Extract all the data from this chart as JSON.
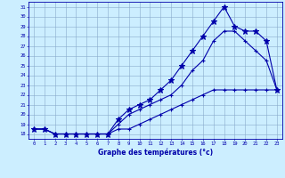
{
  "xlabel": "Graphe des températures (°c)",
  "bg_color": "#cceeff",
  "line_color": "#0000aa",
  "grid_color": "#88aacc",
  "xlim": [
    -0.5,
    23.5
  ],
  "ylim": [
    17.5,
    31.5
  ],
  "xticks": [
    0,
    1,
    2,
    3,
    4,
    5,
    6,
    7,
    8,
    9,
    10,
    11,
    12,
    13,
    14,
    15,
    16,
    17,
    18,
    19,
    20,
    21,
    22,
    23
  ],
  "yticks": [
    18,
    19,
    20,
    21,
    22,
    23,
    24,
    25,
    26,
    27,
    28,
    29,
    30,
    31
  ],
  "line1_x": [
    0,
    1,
    2,
    3,
    4,
    5,
    6,
    7,
    8,
    9,
    10,
    11,
    12,
    13,
    14,
    15,
    16,
    17,
    18,
    19,
    20,
    21,
    22,
    23
  ],
  "line1_y": [
    18.5,
    18.5,
    18.0,
    18.0,
    18.0,
    18.0,
    18.0,
    18.0,
    18.5,
    18.5,
    19.0,
    19.5,
    20.0,
    20.5,
    21.0,
    21.5,
    22.0,
    22.5,
    22.5,
    22.5,
    22.5,
    22.5,
    22.5,
    22.5
  ],
  "line2_x": [
    0,
    1,
    2,
    3,
    4,
    5,
    6,
    7,
    8,
    9,
    10,
    11,
    12,
    13,
    14,
    15,
    16,
    17,
    18,
    19,
    20,
    21,
    22,
    23
  ],
  "line2_y": [
    18.5,
    18.5,
    18.0,
    18.0,
    18.0,
    18.0,
    18.0,
    18.0,
    19.0,
    20.0,
    20.5,
    21.0,
    21.5,
    22.0,
    23.0,
    24.5,
    25.5,
    27.5,
    28.5,
    28.5,
    27.5,
    26.5,
    25.5,
    22.5
  ],
  "line3_x": [
    0,
    1,
    2,
    3,
    4,
    5,
    6,
    7,
    8,
    9,
    10,
    11,
    12,
    13,
    14,
    15,
    16,
    17,
    18,
    19,
    20,
    21,
    22,
    23
  ],
  "line3_y": [
    18.5,
    18.5,
    18.0,
    18.0,
    18.0,
    18.0,
    18.0,
    18.0,
    19.5,
    20.5,
    21.0,
    21.5,
    22.5,
    23.5,
    25.0,
    26.5,
    28.0,
    29.5,
    31.0,
    29.0,
    28.5,
    28.5,
    27.5,
    22.5
  ]
}
